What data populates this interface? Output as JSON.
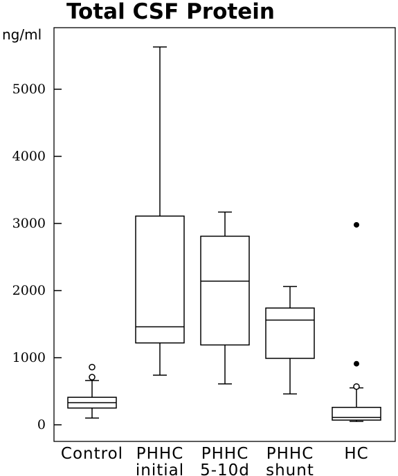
{
  "chart_data": {
    "type": "box",
    "title": "Total CSF Protein",
    "ylabel": "ng/ml",
    "ylim": [
      -250,
      6000
    ],
    "yticks": [
      0,
      1000,
      2000,
      3000,
      4000,
      5000
    ],
    "categories": [
      {
        "lines": [
          "Control"
        ]
      },
      {
        "lines": [
          "PHHC",
          "initial"
        ]
      },
      {
        "lines": [
          "PHHC",
          "5-10d"
        ]
      },
      {
        "lines": [
          "PHHC",
          "shunt"
        ]
      },
      {
        "lines": [
          "HC"
        ]
      }
    ],
    "boxes": [
      {
        "whisker_low": 100,
        "q1": 250,
        "median": 330,
        "q3": 410,
        "whisker_high": 660,
        "outliers_open": [
          710,
          860
        ],
        "outliers_filled": []
      },
      {
        "whisker_low": 740,
        "q1": 1220,
        "median": 1460,
        "q3": 3110,
        "whisker_high": 5630,
        "outliers_open": [],
        "outliers_filled": []
      },
      {
        "whisker_low": 610,
        "q1": 1190,
        "median": 2140,
        "q3": 2810,
        "whisker_high": 3170,
        "outliers_open": [],
        "outliers_filled": []
      },
      {
        "whisker_low": 460,
        "q1": 990,
        "median": 1560,
        "q3": 1740,
        "whisker_high": 2060,
        "outliers_open": [],
        "outliers_filled": []
      },
      {
        "whisker_low": 50,
        "q1": 70,
        "median": 110,
        "q3": 260,
        "whisker_high": 550,
        "outliers_open": [
          570
        ],
        "outliers_filled": [
          910,
          2980
        ]
      }
    ]
  }
}
